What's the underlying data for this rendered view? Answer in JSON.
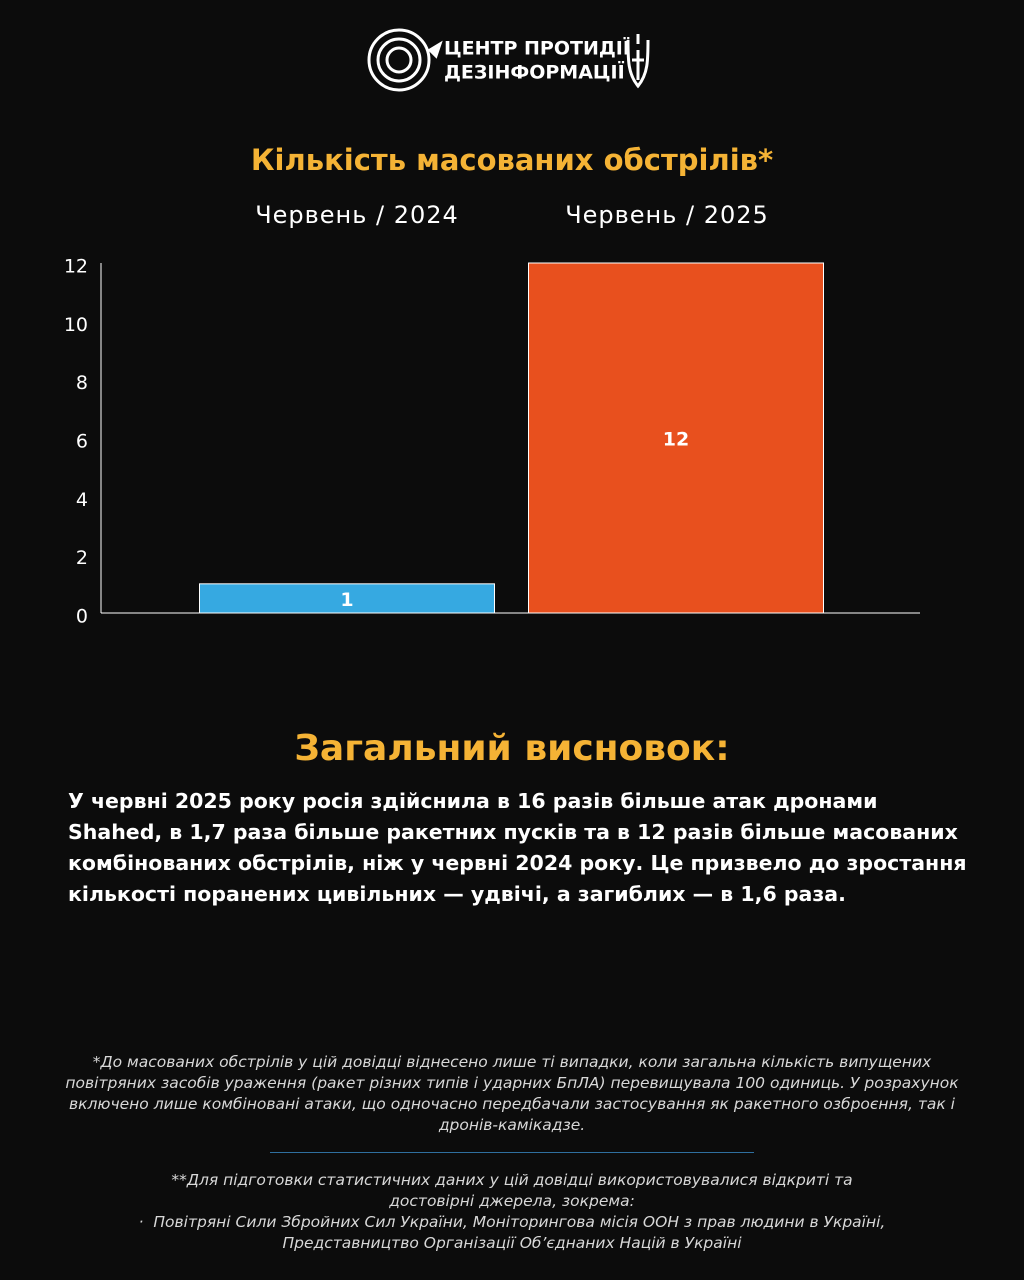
{
  "header": {
    "line1": "ЦЕНТР ПРОТИДІЇ",
    "line2": "ДЕЗІНФОРМАЦІЇ"
  },
  "chart_data": {
    "type": "bar",
    "title": "Кількість масованих обстрілів*",
    "categories": [
      "Червень / 2024",
      "Червень / 2025"
    ],
    "values": [
      1,
      12
    ],
    "colors": [
      "#36a9e1",
      "#e8501e"
    ],
    "ylim": [
      0,
      12
    ],
    "yticks": [
      0,
      2,
      4,
      6,
      8,
      10,
      12
    ],
    "grid": false
  },
  "conclusion": {
    "title": "Загальний висновок:",
    "text": "У червні 2025 року росія здійснила в 16 разів більше атак дронами Shahed, в 1,7 раза більше ракетних пусків та в 12 разів більше масованих комбінованих обстрілів, ніж у червні 2024 року. Це призвело до зростання кількості поранених цивільних — удвічі, а загиблих — в 1,6 раза."
  },
  "footnotes": {
    "note1": "*До масованих обстрілів у цій довідці віднесено лише ті випадки, коли загальна кількість випущених повітряних засобів ураження (ракет різних типів і ударних БпЛА) перевищувала 100 одиниць. У розрахунок включено лише комбіновані атаки, що одночасно передбачали застосування як ракетного озброєння, так і дронів-камікадзе.",
    "note2": "**Для підготовки статистичних даних у цій довідці використовувалися відкриті та достовірні джерела, зокрема:",
    "sources": "Повітряні Сили Збройних Сил України, Моніторингова місія ООН з прав людини в Україні, Представництво Організації Об’єднаних Націй в Україні"
  }
}
